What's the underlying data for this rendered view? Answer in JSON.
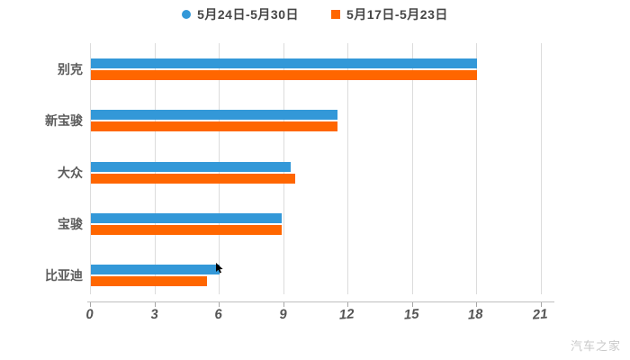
{
  "chart_data": {
    "type": "bar",
    "orientation": "horizontal",
    "title": "",
    "categories": [
      "别克",
      "新宝骏",
      "大众",
      "宝骏",
      "比亚迪"
    ],
    "series": [
      {
        "name": "5月24日-5月30日",
        "color": "#3398d8",
        "marker": "circle",
        "values": [
          18.0,
          11.5,
          9.3,
          8.9,
          6.0
        ]
      },
      {
        "name": "5月17日-5月23日",
        "color": "#ff6600",
        "marker": "square",
        "values": [
          18.0,
          11.5,
          9.5,
          8.9,
          5.4
        ]
      }
    ],
    "xlabel": "",
    "ylabel": "",
    "xlim": [
      0,
      21
    ],
    "xticks": [
      0,
      3,
      6,
      9,
      12,
      15,
      18,
      21
    ],
    "grid": true,
    "legend_position": "top"
  },
  "watermark": "汽车之家",
  "colors": {
    "series_blue": "#3398d8",
    "series_orange": "#ff6600",
    "gridline": "#dcdcdc",
    "axis_line": "#bfbfbf",
    "tick_label": "#555555",
    "category_label": "#5c5c5c",
    "legend_label": "#464646",
    "watermark": "#c9c9c9",
    "background": "#ffffff"
  }
}
